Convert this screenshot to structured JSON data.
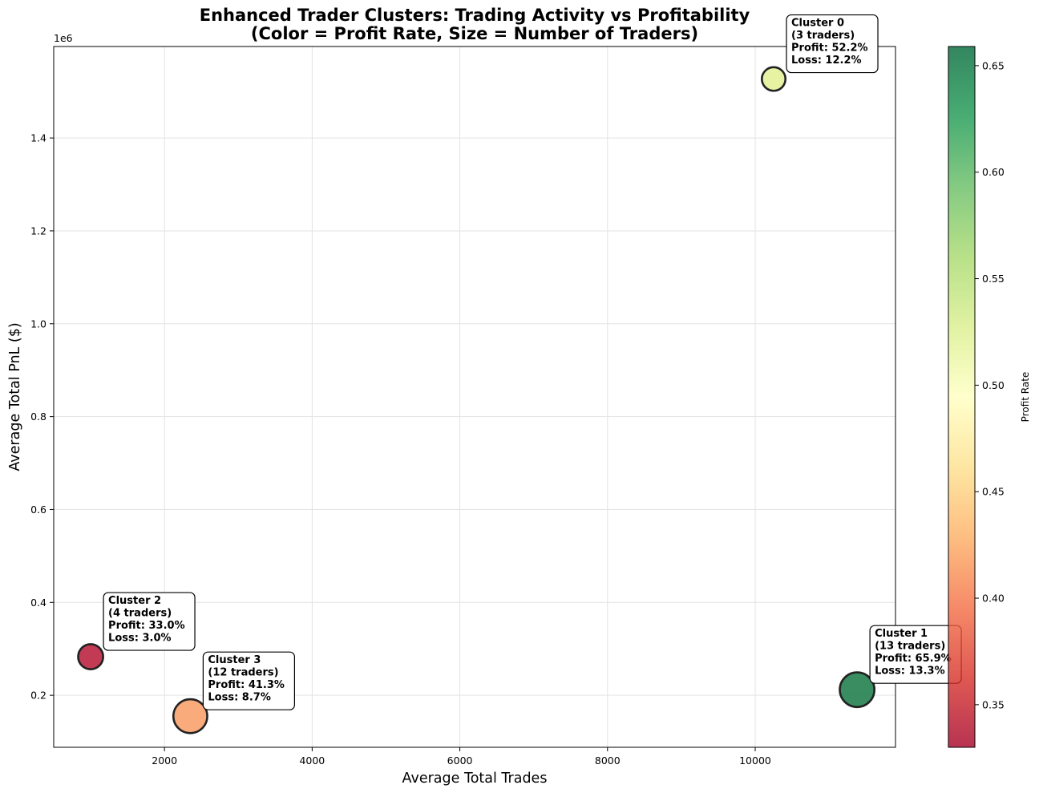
{
  "chart_data": {
    "type": "scatter",
    "title": "Enhanced Trader Clusters: Trading Activity vs Profitability",
    "subtitle": "(Color = Profit Rate, Size = Number of Traders)",
    "xlabel": "Average Total Trades",
    "ylabel": "Average Total PnL ($)",
    "y_offset_label": "1e6",
    "xlim": [
      500,
      11900
    ],
    "ylim": [
      0.088,
      1.597
    ],
    "y_scale_factor": 1000000,
    "grid": true,
    "x_ticks": [
      {
        "value": 2000,
        "label": "2000"
      },
      {
        "value": 4000,
        "label": "4000"
      },
      {
        "value": 6000,
        "label": "6000"
      },
      {
        "value": 8000,
        "label": "8000"
      },
      {
        "value": 10000,
        "label": "10000"
      }
    ],
    "y_ticks": [
      {
        "value": 0.2,
        "label": "0.2"
      },
      {
        "value": 0.4,
        "label": "0.4"
      },
      {
        "value": 0.6,
        "label": "0.6"
      },
      {
        "value": 0.8,
        "label": "0.8"
      },
      {
        "value": 1.0,
        "label": "1.0"
      },
      {
        "value": 1.2,
        "label": "1.2"
      },
      {
        "value": 1.4,
        "label": "1.4"
      }
    ],
    "colorbar": {
      "label": "Profit Rate",
      "colormap": "RdYlGn",
      "range": [
        0.33,
        0.659
      ],
      "ticks": [
        {
          "value": 0.35,
          "label": "0.35"
        },
        {
          "value": 0.4,
          "label": "0.40"
        },
        {
          "value": 0.45,
          "label": "0.45"
        },
        {
          "value": 0.5,
          "label": "0.50"
        },
        {
          "value": 0.55,
          "label": "0.55"
        },
        {
          "value": 0.6,
          "label": "0.60"
        },
        {
          "value": 0.65,
          "label": "0.65"
        }
      ],
      "stops": [
        "#a50026",
        "#d73027",
        "#f46d43",
        "#fdae61",
        "#fee08b",
        "#ffffbf",
        "#d9ef8b",
        "#a6d96a",
        "#66bd63",
        "#1a9850",
        "#006837"
      ]
    },
    "points": [
      {
        "cluster": 0,
        "x": 10250,
        "y": 1.527,
        "traders": 3,
        "profit_rate": 0.522,
        "color": "#e6f29e",
        "annotation": [
          "Cluster 0",
          "(3 traders)",
          "Profit: 52.2%",
          "Loss: 12.2%"
        ]
      },
      {
        "cluster": 1,
        "x": 11380,
        "y": 0.212,
        "traders": 13,
        "profit_rate": 0.659,
        "color": "#2e8759",
        "annotation": [
          "Cluster 1",
          "(13 traders)",
          "Profit: 65.9%",
          "Loss: 13.3%"
        ]
      },
      {
        "cluster": 2,
        "x": 1000,
        "y": 0.283,
        "traders": 4,
        "profit_rate": 0.33,
        "color": "#c02f4b",
        "annotation": [
          "Cluster 2",
          "(4 traders)",
          "Profit: 33.0%",
          "Loss: 3.0%"
        ]
      },
      {
        "cluster": 3,
        "x": 2350,
        "y": 0.155,
        "traders": 12,
        "profit_rate": 0.413,
        "color": "#f9a674",
        "annotation": [
          "Cluster 3",
          "(12 traders)",
          "Profit: 41.3%",
          "Loss: 8.7%"
        ]
      }
    ]
  }
}
